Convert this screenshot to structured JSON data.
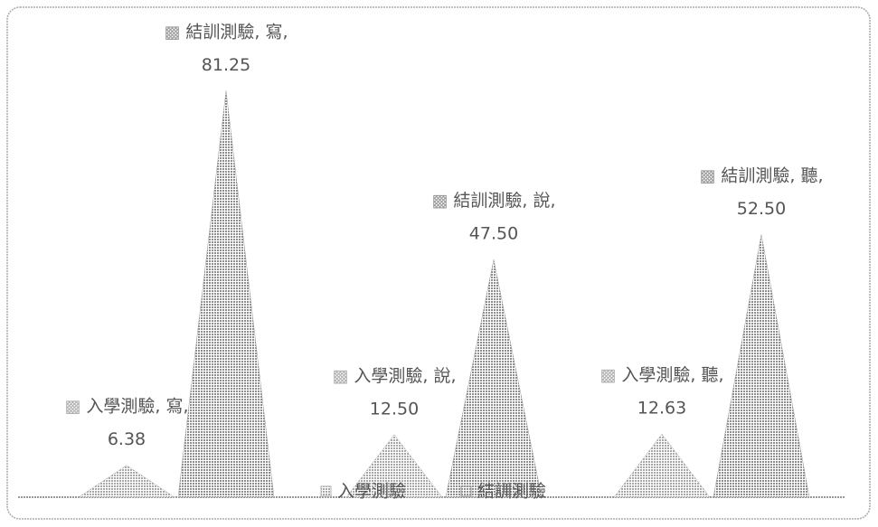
{
  "chart_data": {
    "type": "pyramid",
    "categories": [
      "寫",
      "說",
      "聽"
    ],
    "series": [
      {
        "name": "入學測驗",
        "color": "#b0b0b0",
        "values": [
          6.38,
          12.5,
          12.63
        ],
        "value_labels": [
          "6.38",
          "12.50",
          "12.63"
        ]
      },
      {
        "name": "結訓測驗",
        "color": "#9a9a9a",
        "values": [
          81.25,
          47.5,
          52.5
        ],
        "value_labels": [
          "81.25",
          "47.50",
          "52.50"
        ]
      }
    ],
    "ylim": [
      0,
      90
    ],
    "legend": "bottom"
  }
}
